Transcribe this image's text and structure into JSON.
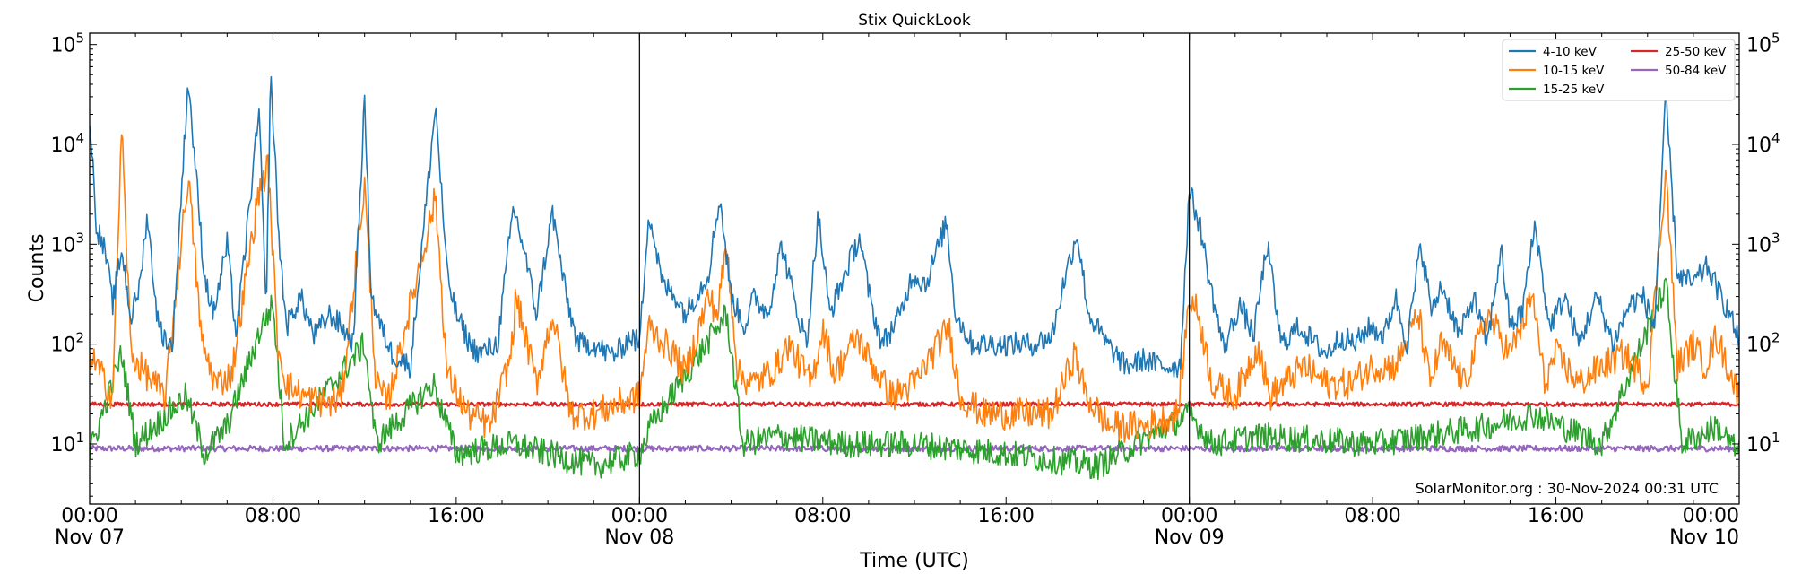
{
  "chart_data": {
    "type": "line",
    "title": "Stix QuickLook",
    "xlabel": "Time (UTC)",
    "ylabel": "Counts",
    "yscale": "log",
    "ylim": [
      2.5,
      130000
    ],
    "xlim_hours": [
      0,
      72
    ],
    "y_ticks": [
      {
        "value": 10,
        "base": "10",
        "exp": "1"
      },
      {
        "value": 100,
        "base": "10",
        "exp": "2"
      },
      {
        "value": 1000,
        "base": "10",
        "exp": "3"
      },
      {
        "value": 10000,
        "base": "10",
        "exp": "4"
      },
      {
        "value": 100000,
        "base": "10",
        "exp": "5"
      }
    ],
    "x_ticks": [
      {
        "hour": 0,
        "time": "00:00",
        "date": "Nov 07"
      },
      {
        "hour": 8,
        "time": "08:00",
        "date": ""
      },
      {
        "hour": 16,
        "time": "16:00",
        "date": ""
      },
      {
        "hour": 24,
        "time": "00:00",
        "date": "Nov 08"
      },
      {
        "hour": 32,
        "time": "08:00",
        "date": ""
      },
      {
        "hour": 40,
        "time": "16:00",
        "date": ""
      },
      {
        "hour": 48,
        "time": "00:00",
        "date": "Nov 09"
      },
      {
        "hour": 56,
        "time": "08:00",
        "date": ""
      },
      {
        "hour": 64,
        "time": "16:00",
        "date": ""
      },
      {
        "hour": 72,
        "time": "00:00",
        "date": "Nov 10"
      }
    ],
    "day_boundaries_hours": [
      24,
      48
    ],
    "legend_position": "top-right",
    "annotation": "SolarMonitor.org : 30-Nov-2024 00:31 UTC",
    "series": [
      {
        "name": "4-10 keV",
        "color": "#1f77b4",
        "baseline": 55,
        "noise": 0.12,
        "points": [
          [
            0,
            20000
          ],
          [
            0.3,
            1500
          ],
          [
            0.7,
            800
          ],
          [
            1,
            250
          ],
          [
            1.4,
            900
          ],
          [
            1.8,
            180
          ],
          [
            2.2,
            400
          ],
          [
            2.5,
            2000
          ],
          [
            3,
            150
          ],
          [
            3.6,
            90
          ],
          [
            4.3,
            45000
          ],
          [
            5,
            500
          ],
          [
            5.4,
            200
          ],
          [
            6,
            1000
          ],
          [
            6.4,
            120
          ],
          [
            7.4,
            22000
          ],
          [
            7.7,
            200
          ],
          [
            7.9,
            52000
          ],
          [
            8.3,
            800
          ],
          [
            8.6,
            150
          ],
          [
            9.2,
            300
          ],
          [
            9.8,
            120
          ],
          [
            10.5,
            200
          ],
          [
            11,
            150
          ],
          [
            11.5,
            100
          ],
          [
            12,
            28000
          ],
          [
            12.3,
            300
          ],
          [
            12.7,
            150
          ],
          [
            13.2,
            80
          ],
          [
            14,
            60
          ],
          [
            15.1,
            25000
          ],
          [
            15.6,
            500
          ],
          [
            16,
            200
          ],
          [
            16.6,
            100
          ],
          [
            17,
            80
          ],
          [
            17.8,
            100
          ],
          [
            18.5,
            2400
          ],
          [
            19,
            800
          ],
          [
            19.5,
            200
          ],
          [
            20.2,
            2100
          ],
          [
            20.8,
            300
          ],
          [
            21.3,
            100
          ],
          [
            22,
            100
          ],
          [
            22.6,
            80
          ],
          [
            23,
            80
          ],
          [
            23.6,
            120
          ],
          [
            24,
            100
          ],
          [
            24.4,
            2200
          ],
          [
            25,
            400
          ],
          [
            25.6,
            300
          ],
          [
            26,
            200
          ],
          [
            27,
            500
          ],
          [
            27.5,
            3000
          ],
          [
            28,
            300
          ],
          [
            28.6,
            150
          ],
          [
            29,
            300
          ],
          [
            29.6,
            200
          ],
          [
            30.2,
            1000
          ],
          [
            30.8,
            250
          ],
          [
            31.3,
            100
          ],
          [
            31.8,
            2000
          ],
          [
            32.3,
            200
          ],
          [
            32.8,
            400
          ],
          [
            33.6,
            1200
          ],
          [
            34.1,
            250
          ],
          [
            34.6,
            100
          ],
          [
            35.4,
            200
          ],
          [
            35.9,
            500
          ],
          [
            36.5,
            400
          ],
          [
            37.4,
            1700
          ],
          [
            37.8,
            200
          ],
          [
            38.5,
            100
          ],
          [
            39,
            100
          ],
          [
            39.5,
            100
          ],
          [
            40.5,
            100
          ],
          [
            41.2,
            100
          ],
          [
            42,
            120
          ],
          [
            42.5,
            400
          ],
          [
            43.1,
            1300
          ],
          [
            43.6,
            200
          ],
          [
            44.4,
            100
          ],
          [
            45.2,
            60
          ],
          [
            46,
            70
          ],
          [
            46.8,
            60
          ],
          [
            47.6,
            60
          ],
          [
            48,
            3500
          ],
          [
            48.5,
            1400
          ],
          [
            48.9,
            400
          ],
          [
            49.5,
            90
          ],
          [
            50.2,
            250
          ],
          [
            50.8,
            120
          ],
          [
            51.4,
            1000
          ],
          [
            52,
            100
          ],
          [
            52.8,
            150
          ],
          [
            53.5,
            100
          ],
          [
            54,
            80
          ],
          [
            54.6,
            120
          ],
          [
            55.2,
            100
          ],
          [
            55.9,
            150
          ],
          [
            56.5,
            120
          ],
          [
            57,
            300
          ],
          [
            57.5,
            100
          ],
          [
            58.1,
            1000
          ],
          [
            58.6,
            200
          ],
          [
            59,
            400
          ],
          [
            59.8,
            120
          ],
          [
            60.4,
            300
          ],
          [
            61,
            100
          ],
          [
            61.6,
            900
          ],
          [
            62,
            150
          ],
          [
            62.5,
            200
          ],
          [
            63.1,
            1600
          ],
          [
            63.7,
            150
          ],
          [
            64.4,
            300
          ],
          [
            65,
            100
          ],
          [
            65.8,
            300
          ],
          [
            66.5,
            100
          ],
          [
            67.2,
            250
          ],
          [
            67.8,
            300
          ],
          [
            68.3,
            150
          ],
          [
            68.8,
            30000
          ],
          [
            69.3,
            500
          ],
          [
            70,
            400
          ],
          [
            70.6,
            600
          ],
          [
            71.2,
            300
          ],
          [
            71.6,
            200
          ],
          [
            72,
            100
          ]
        ]
      },
      {
        "name": "10-15 keV",
        "color": "#ff7f0e",
        "baseline": 11,
        "noise": 0.16,
        "points": [
          [
            0,
            80
          ],
          [
            1,
            30
          ],
          [
            1.4,
            15000
          ],
          [
            1.8,
            80
          ],
          [
            2.2,
            60
          ],
          [
            2.8,
            40
          ],
          [
            3.3,
            30
          ],
          [
            4.3,
            5000
          ],
          [
            4.9,
            100
          ],
          [
            5.5,
            40
          ],
          [
            6.2,
            50
          ],
          [
            7.4,
            3500
          ],
          [
            7.8,
            6000
          ],
          [
            8.2,
            100
          ],
          [
            8.6,
            40
          ],
          [
            9.3,
            30
          ],
          [
            10.5,
            25
          ],
          [
            11,
            30
          ],
          [
            12,
            4000
          ],
          [
            12.5,
            40
          ],
          [
            13,
            25
          ],
          [
            15.1,
            3000
          ],
          [
            15.6,
            50
          ],
          [
            16.5,
            20
          ],
          [
            17.5,
            15
          ],
          [
            18.4,
            80
          ],
          [
            18.6,
            300
          ],
          [
            19.5,
            40
          ],
          [
            20.2,
            200
          ],
          [
            21,
            20
          ],
          [
            22,
            20
          ],
          [
            23,
            25
          ],
          [
            24,
            30
          ],
          [
            24.4,
            150
          ],
          [
            25.5,
            80
          ],
          [
            26,
            50
          ],
          [
            27,
            300
          ],
          [
            27.4,
            200
          ],
          [
            27.8,
            1000
          ],
          [
            28.3,
            50
          ],
          [
            29,
            40
          ],
          [
            30,
            60
          ],
          [
            30.5,
            100
          ],
          [
            31.5,
            40
          ],
          [
            32,
            150
          ],
          [
            32.5,
            50
          ],
          [
            33.5,
            120
          ],
          [
            34.2,
            60
          ],
          [
            35,
            30
          ],
          [
            36,
            40
          ],
          [
            37.5,
            150
          ],
          [
            38,
            30
          ],
          [
            39,
            20
          ],
          [
            40,
            20
          ],
          [
            41,
            20
          ],
          [
            42,
            20
          ],
          [
            43,
            80
          ],
          [
            43.5,
            30
          ],
          [
            44.5,
            15
          ],
          [
            46,
            15
          ],
          [
            47.5,
            20
          ],
          [
            48,
            300
          ],
          [
            48.4,
            200
          ],
          [
            49,
            40
          ],
          [
            50,
            30
          ],
          [
            51,
            100
          ],
          [
            51.5,
            30
          ],
          [
            53,
            60
          ],
          [
            54,
            40
          ],
          [
            55,
            40
          ],
          [
            56,
            60
          ],
          [
            57,
            60
          ],
          [
            58,
            200
          ],
          [
            58.5,
            40
          ],
          [
            59,
            100
          ],
          [
            60,
            40
          ],
          [
            61,
            200
          ],
          [
            62,
            80
          ],
          [
            63,
            300
          ],
          [
            63.5,
            40
          ],
          [
            64,
            80
          ],
          [
            65,
            40
          ],
          [
            66,
            60
          ],
          [
            67,
            80
          ],
          [
            68,
            40
          ],
          [
            68.8,
            5500
          ],
          [
            69.3,
            60
          ],
          [
            70,
            100
          ],
          [
            70.5,
            60
          ],
          [
            71,
            120
          ],
          [
            72,
            30
          ]
        ]
      },
      {
        "name": "15-25 keV",
        "color": "#2ca02c",
        "baseline": 5,
        "noise": 0.14,
        "points": [
          [
            0,
            8
          ],
          [
            1.4,
            80
          ],
          [
            2,
            10
          ],
          [
            4.2,
            30
          ],
          [
            5,
            8
          ],
          [
            6,
            15
          ],
          [
            7.5,
            150
          ],
          [
            8,
            250
          ],
          [
            8.5,
            10
          ],
          [
            12,
            100
          ],
          [
            12.5,
            10
          ],
          [
            15,
            40
          ],
          [
            16,
            8
          ],
          [
            18.5,
            10
          ],
          [
            20,
            8
          ],
          [
            22,
            6
          ],
          [
            24,
            8
          ],
          [
            24.5,
            15
          ],
          [
            27.8,
            200
          ],
          [
            28.5,
            10
          ],
          [
            30,
            12
          ],
          [
            33,
            10
          ],
          [
            36,
            10
          ],
          [
            40,
            8
          ],
          [
            44,
            6
          ],
          [
            48,
            20
          ],
          [
            49,
            10
          ],
          [
            51,
            12
          ],
          [
            56,
            10
          ],
          [
            61,
            15
          ],
          [
            63,
            20
          ],
          [
            66,
            10
          ],
          [
            68.8,
            400
          ],
          [
            69.5,
            10
          ],
          [
            71,
            15
          ],
          [
            72,
            8
          ]
        ]
      },
      {
        "name": "25-50 keV",
        "color": "#d62728",
        "baseline": 25,
        "noise": 0.02,
        "points": [
          [
            0,
            25
          ],
          [
            72,
            25
          ]
        ]
      },
      {
        "name": "50-84 keV",
        "color": "#9467bd",
        "baseline": 9,
        "noise": 0.03,
        "points": [
          [
            0,
            9
          ],
          [
            72,
            9
          ]
        ]
      }
    ]
  }
}
